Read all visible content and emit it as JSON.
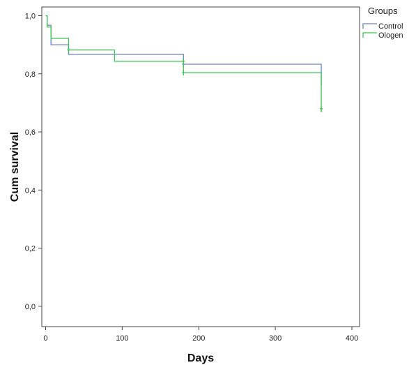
{
  "chart_data": {
    "type": "line",
    "subtype": "kaplan-meier step",
    "xlabel": "Days",
    "ylabel": "Cum survival",
    "xlim": [
      -5,
      410
    ],
    "ylim": [
      -0.07,
      1.03
    ],
    "xticks": [
      0,
      100,
      200,
      300,
      400
    ],
    "xtick_labels": [
      "0",
      "100",
      "200",
      "300",
      "400"
    ],
    "yticks": [
      0.0,
      0.2,
      0.4,
      0.6,
      0.8,
      1.0
    ],
    "ytick_labels": [
      "0,0",
      "0,2",
      "0,4",
      "0,6",
      "0,8",
      "1,0"
    ],
    "grid": false,
    "legend": {
      "title": "Groups",
      "position": "outside-top-right"
    },
    "series": [
      {
        "name": "Control",
        "color": "#6a7fc7",
        "steps": [
          [
            0,
            1.0
          ],
          [
            2,
            0.967
          ],
          [
            7,
            0.9
          ],
          [
            30,
            0.867
          ],
          [
            180,
            0.833
          ],
          [
            360,
            0.764
          ],
          [
            361,
            0.764
          ]
        ],
        "censored": [
          [
            180,
            0.833
          ]
        ]
      },
      {
        "name": "Ologen",
        "color": "#3ac64e",
        "steps": [
          [
            0,
            1.0
          ],
          [
            2,
            0.961
          ],
          [
            7,
            0.922
          ],
          [
            30,
            0.882
          ],
          [
            90,
            0.843
          ],
          [
            180,
            0.804
          ],
          [
            360,
            0.67
          ],
          [
            361,
            0.67
          ]
        ],
        "censored": [
          [
            30,
            0.882
          ],
          [
            180,
            0.843
          ],
          [
            180,
            0.804
          ],
          [
            360,
            0.68
          ]
        ]
      }
    ]
  }
}
